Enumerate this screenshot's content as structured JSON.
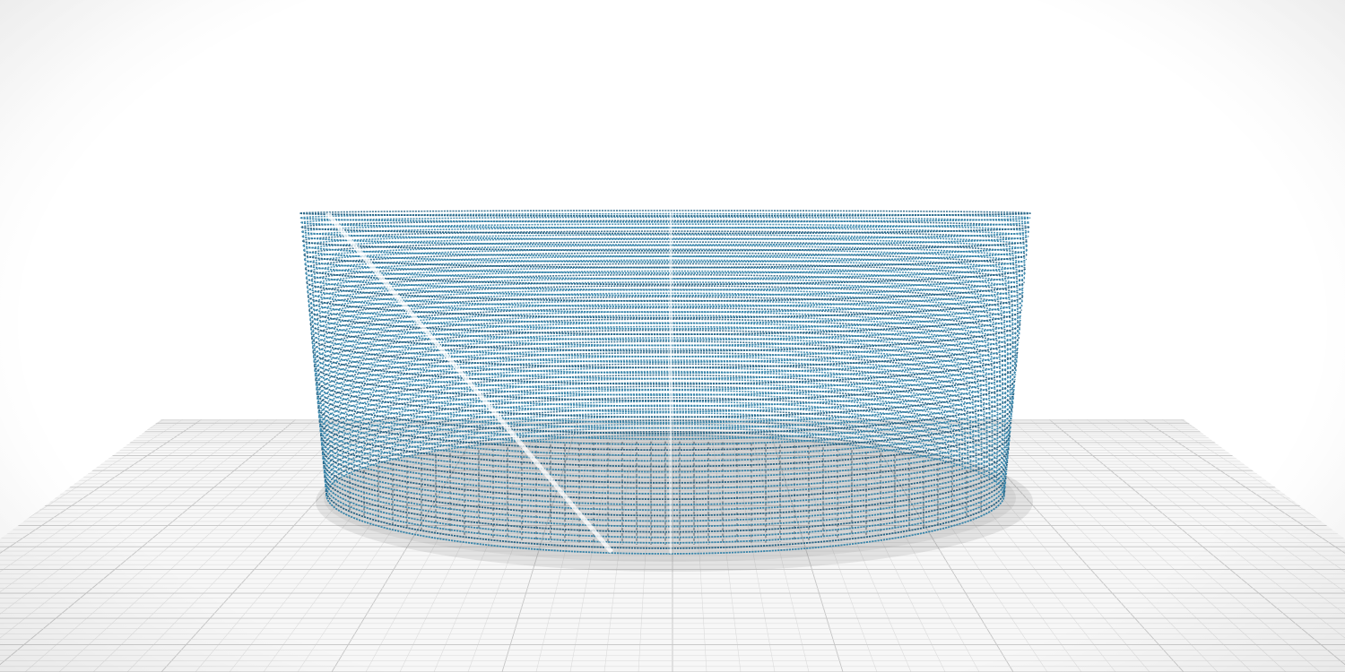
{
  "scene": {
    "type": "3d-print-preview",
    "background_color": "#ffffff",
    "bed_color": "#f7f7f7",
    "bed_grid_minor_color": "#dcdcdc",
    "bed_grid_major_color": "#c4c4c4",
    "toolpath_color": "#2e7fa6",
    "toolpath_dark_color": "#1f5f82",
    "shadow_color": "#3a3a3a",
    "object": {
      "shape": "tapered-cylinder-shell",
      "layers_visible": 62,
      "wall_style": "single-wall-spiral"
    }
  }
}
